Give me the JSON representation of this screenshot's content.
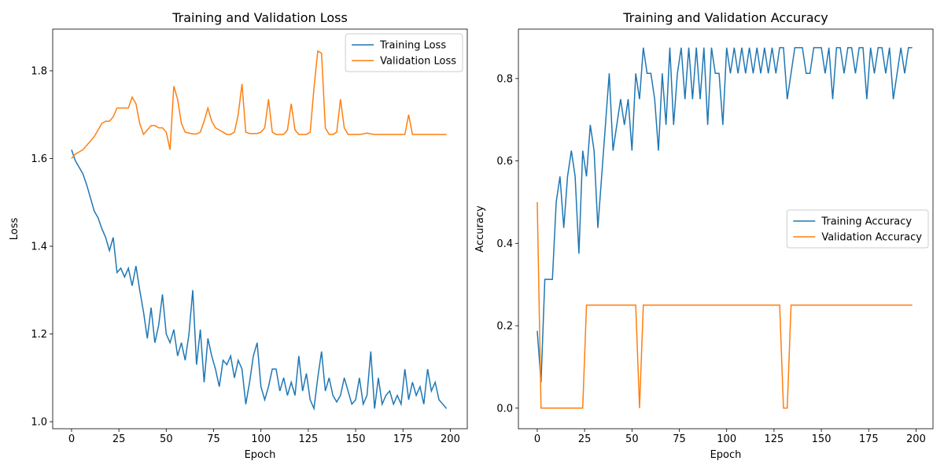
{
  "chart_data": [
    {
      "type": "line",
      "title": "Training and Validation Loss",
      "xlabel": "Epoch",
      "ylabel": "Loss",
      "x": [
        0,
        2,
        4,
        6,
        8,
        10,
        12,
        14,
        16,
        18,
        20,
        22,
        24,
        26,
        28,
        30,
        32,
        34,
        36,
        38,
        40,
        42,
        44,
        46,
        48,
        50,
        52,
        54,
        56,
        58,
        60,
        62,
        64,
        66,
        68,
        70,
        72,
        74,
        76,
        78,
        80,
        82,
        84,
        86,
        88,
        90,
        92,
        94,
        96,
        98,
        100,
        102,
        104,
        106,
        108,
        110,
        112,
        114,
        116,
        118,
        120,
        122,
        124,
        126,
        128,
        130,
        132,
        134,
        136,
        138,
        140,
        142,
        144,
        146,
        148,
        150,
        152,
        154,
        156,
        158,
        160,
        162,
        164,
        166,
        168,
        170,
        172,
        174,
        176,
        178,
        180,
        182,
        184,
        186,
        188,
        190,
        192,
        194,
        196,
        198
      ],
      "series": [
        {
          "name": "Training Loss",
          "color": "#1f77b4",
          "values": [
            1.62,
            1.595,
            1.58,
            1.565,
            1.54,
            1.51,
            1.48,
            1.465,
            1.44,
            1.42,
            1.39,
            1.42,
            1.34,
            1.35,
            1.33,
            1.35,
            1.31,
            1.355,
            1.3,
            1.25,
            1.19,
            1.26,
            1.18,
            1.22,
            1.29,
            1.2,
            1.18,
            1.21,
            1.15,
            1.18,
            1.14,
            1.2,
            1.3,
            1.13,
            1.21,
            1.09,
            1.19,
            1.15,
            1.12,
            1.08,
            1.14,
            1.13,
            1.15,
            1.1,
            1.14,
            1.12,
            1.04,
            1.09,
            1.15,
            1.18,
            1.08,
            1.05,
            1.08,
            1.12,
            1.12,
            1.07,
            1.1,
            1.06,
            1.09,
            1.06,
            1.15,
            1.07,
            1.11,
            1.05,
            1.03,
            1.1,
            1.16,
            1.07,
            1.1,
            1.06,
            1.045,
            1.06,
            1.1,
            1.07,
            1.04,
            1.05,
            1.1,
            1.04,
            1.06,
            1.16,
            1.03,
            1.1,
            1.04,
            1.06,
            1.07,
            1.04,
            1.06,
            1.04,
            1.12,
            1.05,
            1.09,
            1.06,
            1.08,
            1.04,
            1.12,
            1.07,
            1.09,
            1.05,
            1.04,
            1.03
          ]
        },
        {
          "name": "Validation Loss",
          "color": "#ff7f0e",
          "values": [
            1.6,
            1.61,
            1.615,
            1.62,
            1.63,
            1.64,
            1.65,
            1.665,
            1.68,
            1.685,
            1.685,
            1.695,
            1.715,
            1.715,
            1.715,
            1.715,
            1.74,
            1.725,
            1.68,
            1.655,
            1.665,
            1.675,
            1.675,
            1.67,
            1.67,
            1.66,
            1.62,
            1.765,
            1.735,
            1.68,
            1.66,
            1.658,
            1.656,
            1.656,
            1.66,
            1.685,
            1.715,
            1.685,
            1.67,
            1.665,
            1.66,
            1.655,
            1.655,
            1.66,
            1.7,
            1.77,
            1.66,
            1.657,
            1.657,
            1.657,
            1.66,
            1.67,
            1.735,
            1.66,
            1.655,
            1.655,
            1.655,
            1.665,
            1.725,
            1.665,
            1.655,
            1.655,
            1.655,
            1.66,
            1.76,
            1.845,
            1.84,
            1.67,
            1.655,
            1.655,
            1.66,
            1.735,
            1.67,
            1.655,
            1.655,
            1.655,
            1.655,
            1.656,
            1.658,
            1.656,
            1.655,
            1.655,
            1.655,
            1.655,
            1.655,
            1.655,
            1.655,
            1.655,
            1.655,
            1.7,
            1.655,
            1.655,
            1.655,
            1.655,
            1.655,
            1.655,
            1.655,
            1.655,
            1.655,
            1.655
          ]
        }
      ],
      "xlim": [
        -9.95,
        208.95
      ],
      "ylim": [
        0.984,
        1.895
      ],
      "xticks": [
        0,
        25,
        50,
        75,
        100,
        125,
        150,
        175,
        200
      ],
      "yticks": [
        {
          "value": 1,
          "label": "1.0"
        },
        1.2,
        1.4,
        1.6,
        1.8
      ],
      "legend": "upper right"
    },
    {
      "type": "line",
      "title": "Training and Validation Accuracy",
      "xlabel": "Epoch",
      "ylabel": "Accuracy",
      "x": [
        0,
        2,
        4,
        6,
        8,
        10,
        12,
        14,
        16,
        18,
        20,
        22,
        24,
        26,
        28,
        30,
        32,
        34,
        36,
        38,
        40,
        42,
        44,
        46,
        48,
        50,
        52,
        54,
        56,
        58,
        60,
        62,
        64,
        66,
        68,
        70,
        72,
        74,
        76,
        78,
        80,
        82,
        84,
        86,
        88,
        90,
        92,
        94,
        96,
        98,
        100,
        102,
        104,
        106,
        108,
        110,
        112,
        114,
        116,
        118,
        120,
        122,
        124,
        126,
        128,
        130,
        132,
        134,
        136,
        138,
        140,
        142,
        144,
        146,
        148,
        150,
        152,
        154,
        156,
        158,
        160,
        162,
        164,
        166,
        168,
        170,
        172,
        174,
        176,
        178,
        180,
        182,
        184,
        186,
        188,
        190,
        192,
        194,
        196,
        198
      ],
      "series": [
        {
          "name": "Training Accuracy",
          "color": "#1f77b4",
          "values": [
            0.1875,
            0.0625,
            0.3125,
            0.3125,
            0.3125,
            0.5,
            0.5625,
            0.4375,
            0.5625,
            0.625,
            0.5625,
            0.375,
            0.625,
            0.5625,
            0.6875,
            0.625,
            0.4375,
            0.5625,
            0.6875,
            0.8125,
            0.625,
            0.6875,
            0.75,
            0.6875,
            0.75,
            0.625,
            0.8125,
            0.75,
            0.875,
            0.8125,
            0.8125,
            0.75,
            0.625,
            0.8125,
            0.6875,
            0.875,
            0.6875,
            0.8125,
            0.875,
            0.75,
            0.875,
            0.75,
            0.875,
            0.75,
            0.875,
            0.6875,
            0.875,
            0.8125,
            0.8125,
            0.6875,
            0.875,
            0.8125,
            0.875,
            0.8125,
            0.875,
            0.8125,
            0.875,
            0.8125,
            0.875,
            0.8125,
            0.875,
            0.8125,
            0.875,
            0.8125,
            0.875,
            0.875,
            0.75,
            0.8125,
            0.875,
            0.875,
            0.875,
            0.8125,
            0.8125,
            0.875,
            0.875,
            0.875,
            0.8125,
            0.875,
            0.75,
            0.875,
            0.875,
            0.8125,
            0.875,
            0.875,
            0.8125,
            0.875,
            0.875,
            0.75,
            0.875,
            0.8125,
            0.875,
            0.875,
            0.8125,
            0.875,
            0.75,
            0.8125,
            0.875,
            0.8125,
            0.875,
            0.875
          ]
        },
        {
          "name": "Validation Accuracy",
          "color": "#ff7f0e",
          "values": [
            0.5,
            0,
            0,
            0,
            0,
            0,
            0,
            0,
            0,
            0,
            0,
            0,
            0,
            0.25,
            0.25,
            0.25,
            0.25,
            0.25,
            0.25,
            0.25,
            0.25,
            0.25,
            0.25,
            0.25,
            0.25,
            0.25,
            0.25,
            0,
            0.25,
            0.25,
            0.25,
            0.25,
            0.25,
            0.25,
            0.25,
            0.25,
            0.25,
            0.25,
            0.25,
            0.25,
            0.25,
            0.25,
            0.25,
            0.25,
            0.25,
            0.25,
            0.25,
            0.25,
            0.25,
            0.25,
            0.25,
            0.25,
            0.25,
            0.25,
            0.25,
            0.25,
            0.25,
            0.25,
            0.25,
            0.25,
            0.25,
            0.25,
            0.25,
            0.25,
            0.25,
            0,
            0,
            0.25,
            0.25,
            0.25,
            0.25,
            0.25,
            0.25,
            0.25,
            0.25,
            0.25,
            0.25,
            0.25,
            0.25,
            0.25,
            0.25,
            0.25,
            0.25,
            0.25,
            0.25,
            0.25,
            0.25,
            0.25,
            0.25,
            0.25,
            0.25,
            0.25,
            0.25,
            0.25,
            0.25,
            0.25,
            0.25,
            0.25,
            0.25,
            0.25
          ]
        }
      ],
      "xlim": [
        -9.95,
        208.95
      ],
      "ylim": [
        -0.05,
        0.92
      ],
      "xticks": [
        0,
        25,
        50,
        75,
        100,
        125,
        150,
        175,
        200
      ],
      "yticks": [
        {
          "value": 0,
          "label": "0.0"
        },
        0.2,
        0.4,
        0.6,
        0.8
      ],
      "legend": "center right"
    }
  ]
}
